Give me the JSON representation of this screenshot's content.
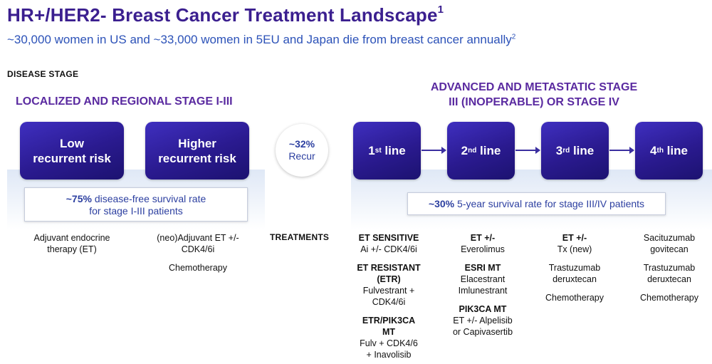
{
  "header": {
    "title": "HR+/HER2- Breast Cancer Treatment Landscape",
    "title_sup": "1",
    "subtitle": "~30,000 women in US and ~33,000 women in 5EU and Japan die from breast cancer annually",
    "subtitle_sup": "2"
  },
  "disease_stage_label": "DISEASE STAGE",
  "left": {
    "heading": "LOCALIZED AND REGIONAL STAGE I-III",
    "box1": [
      "Low",
      "recurrent risk"
    ],
    "box2": [
      "Higher",
      "recurrent risk"
    ],
    "rate_bold": "~75%",
    "rate_text_1": " disease-free survival rate",
    "rate_text_2": "for stage I-III patients",
    "col1": [
      "Adjuvant endocrine",
      "therapy (ET)"
    ],
    "col2": {
      "lines": [
        "(neo)Adjuvant ET +/-",
        "CDK4/6i"
      ],
      "extra": "Chemotherapy"
    }
  },
  "recur": {
    "pct": "~32%",
    "label": "Recur"
  },
  "right": {
    "heading_1": "ADVANCED AND METASTATIC STAGE",
    "heading_2": "III (INOPERABLE) OR STAGE IV",
    "lines": [
      {
        "num": "1",
        "sup": "st",
        "text": " line"
      },
      {
        "num": "2",
        "sup": "nd",
        "text": " line"
      },
      {
        "num": "3",
        "sup": "rd",
        "text": " line"
      },
      {
        "num": "4",
        "sup": "th",
        "text": " line"
      }
    ],
    "rate_bold": "~30%",
    "rate_text": " 5-year survival rate for stage III/IV patients"
  },
  "treatments_label": "TREATMENTS",
  "line1": [
    {
      "bold": "ET SENSITIVE",
      "text": [
        "Ai +/- CDK4/6i"
      ]
    },
    {
      "bold": "ET RESISTANT (ETR)",
      "text": [
        "Fulvestrant +",
        "CDK4/6i"
      ]
    },
    {
      "bold": "ETR/PIK3CA MT",
      "text": [
        "Fulv + CDK4/6",
        "+ Inavolisib"
      ]
    }
  ],
  "line2": [
    {
      "bold": "ET +/-",
      "text": [
        "Everolimus"
      ]
    },
    {
      "bold": "ESRI MT",
      "text": [
        "Elacestrant",
        "Imlunestrant"
      ]
    },
    {
      "bold": "PIK3CA MT",
      "text": [
        "ET +/- Alpelisib",
        "or Capivasertib"
      ]
    }
  ],
  "line3": [
    {
      "bold": "ET +/-",
      "text": [
        "Tx (new)"
      ]
    },
    {
      "bold": "",
      "text": [
        "Trastuzumab",
        "deruxtecan"
      ]
    },
    {
      "bold": "",
      "text": [
        "Chemotherapy"
      ]
    }
  ],
  "line4": [
    {
      "bold": "",
      "text": [
        "Sacituzumab",
        "govitecan"
      ]
    },
    {
      "bold": "",
      "text": [
        "Trastuzumab",
        "deruxtecan"
      ]
    },
    {
      "bold": "",
      "text": [
        "Chemotherapy"
      ]
    }
  ]
}
